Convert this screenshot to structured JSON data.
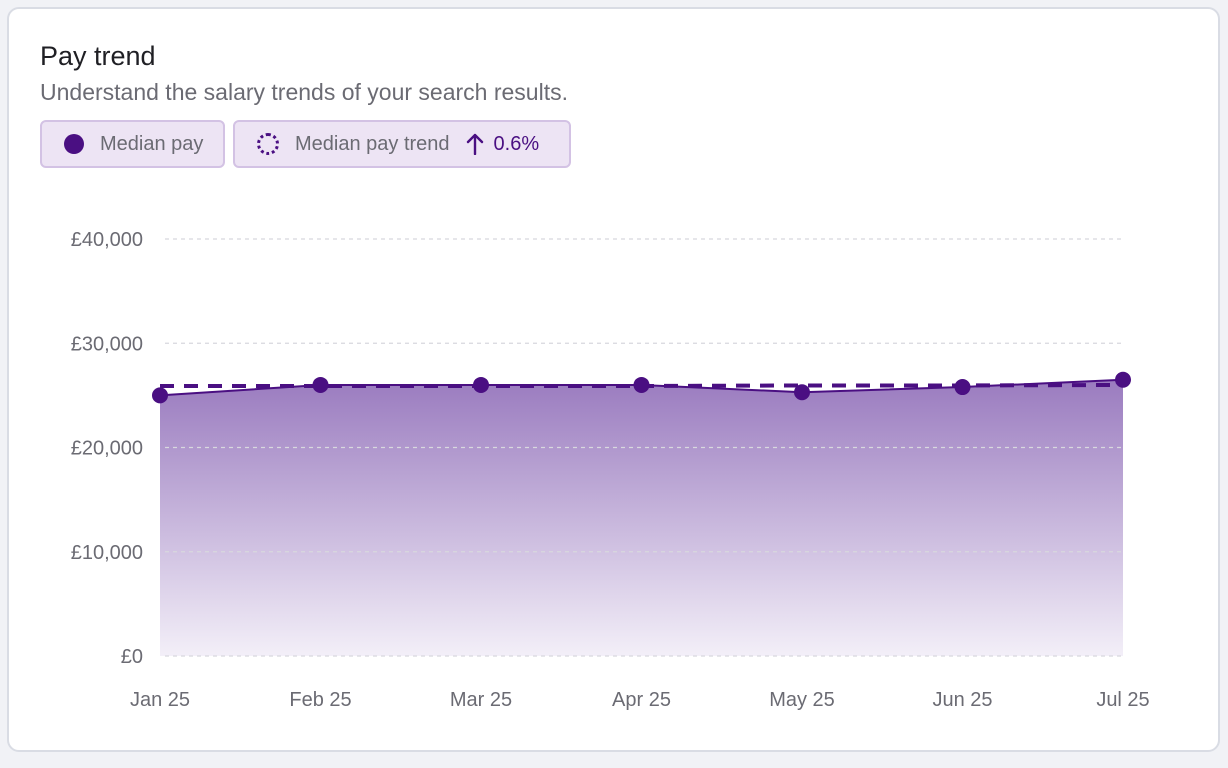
{
  "card": {
    "title": "Pay trend",
    "subtitle": "Understand the salary trends of your search results."
  },
  "legend": {
    "median_label": "Median pay",
    "trend_label": "Median pay trend",
    "trend_change": "0.6%",
    "trend_direction_icon": "arrow-up-icon"
  },
  "colors": {
    "accent": "#4a0f82",
    "area_top": "#9a7bbf",
    "area_bottom": "#f3eff8",
    "legend_bg": "#ede4f4",
    "legend_border": "#d3c2e4",
    "grid": "#d8d8de"
  },
  "chart_data": {
    "type": "area",
    "categories": [
      "Jan 25",
      "Feb 25",
      "Mar 25",
      "Apr 25",
      "May 25",
      "Jun 25",
      "Jul 25"
    ],
    "series": [
      {
        "name": "Median pay",
        "values": [
          25000,
          26000,
          26000,
          26000,
          25300,
          25800,
          26500
        ]
      },
      {
        "name": "Median pay trend",
        "values": [
          25900,
          25900,
          25900,
          25900,
          25950,
          25950,
          26000
        ],
        "style": "dashed"
      }
    ],
    "ylim": [
      0,
      40000
    ],
    "yticks": [
      0,
      10000,
      20000,
      30000,
      40000
    ],
    "ytick_labels": [
      "£0",
      "£10,000",
      "£20,000",
      "£30,000",
      "£40,000"
    ],
    "grid": true,
    "legend_position": "top-left"
  }
}
